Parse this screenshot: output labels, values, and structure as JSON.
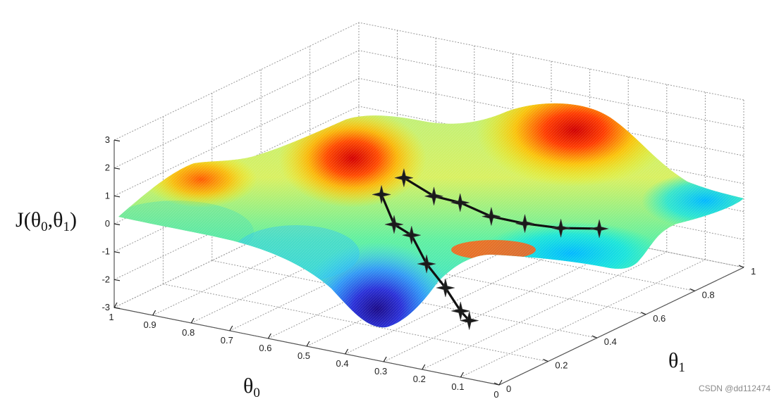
{
  "chart_data": {
    "type": "surface",
    "zlabel": "J(θ0,θ1)",
    "xlabel": "θ0",
    "ylabel": "θ1",
    "z_ticks": [
      "3",
      "2",
      "1",
      "0",
      "-1",
      "-2",
      "-3"
    ],
    "theta0_ticks": [
      "1",
      "0.9",
      "0.8",
      "0.7",
      "0.6",
      "0.5",
      "0.4",
      "0.3",
      "0.2",
      "0.1",
      "0"
    ],
    "theta1_ticks": [
      "0",
      "0.2",
      "0.4",
      "0.6",
      "0.8",
      "1"
    ],
    "zlim": [
      -3,
      3
    ],
    "theta0_lim": [
      0,
      1
    ],
    "theta1_lim": [
      0,
      1
    ],
    "colormap": "jet",
    "paths": [
      {
        "points": [
          [
            0.42,
            0.18,
            1.9
          ],
          [
            0.4,
            0.2,
            0.8
          ],
          [
            0.38,
            0.24,
            0.3
          ],
          [
            0.36,
            0.27,
            -0.8
          ],
          [
            0.33,
            0.3,
            -1.7
          ],
          [
            0.31,
            0.33,
            -2.6
          ],
          [
            0.3,
            0.35,
            -3.0
          ]
        ]
      },
      {
        "points": [
          [
            0.4,
            0.24,
            2.3
          ],
          [
            0.36,
            0.3,
            1.5
          ],
          [
            0.33,
            0.36,
            1.1
          ],
          [
            0.3,
            0.44,
            0.35
          ],
          [
            0.27,
            0.53,
            -0.2
          ],
          [
            0.24,
            0.63,
            -0.7
          ],
          [
            0.21,
            0.74,
            -1.1
          ]
        ]
      }
    ]
  },
  "watermark": "CSDN @dd112474"
}
